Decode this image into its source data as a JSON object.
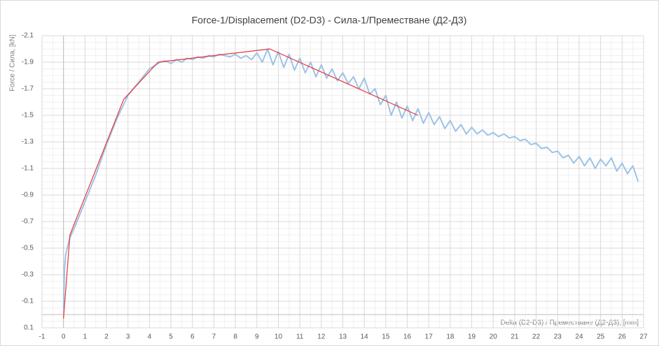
{
  "chart_data": {
    "type": "line",
    "title": "Force-1/Displacement (D2-D3) - Сила-1/Преместване (Д2-Д3)",
    "x_label": "Delta (D2-D3) / Преместване (Д2-Д3), [mm]",
    "y_label": "Force / Сила, [kN]",
    "xlim": [
      -1,
      27
    ],
    "xticks": [
      -1,
      0,
      1,
      2,
      3,
      4,
      5,
      6,
      7,
      8,
      9,
      10,
      11,
      12,
      13,
      14,
      15,
      16,
      17,
      18,
      19,
      20,
      21,
      22,
      23,
      24,
      25,
      26,
      27
    ],
    "ylim": [
      0.1,
      -2.1
    ],
    "yticks": [
      -2.1,
      -1.9,
      -1.7,
      -1.5,
      -1.3,
      -1.1,
      -0.9,
      -0.7,
      -0.5,
      -0.3,
      -0.1,
      0.1
    ],
    "grid": true,
    "series": [
      {
        "color": "#9dc3e6",
        "x": [
          0,
          0.05,
          0.1,
          0.2,
          0.3,
          0.5,
          0.8,
          1.0,
          1.5,
          2.0,
          2.5,
          3.0,
          3.5,
          4.0,
          4.5,
          4.75,
          5,
          5.25,
          5.5,
          5.75,
          6,
          6.25,
          6.5,
          6.75,
          7,
          7.25,
          7.5,
          7.75,
          8,
          8.25,
          8.5,
          8.75,
          9,
          9.25,
          9.5,
          9.75,
          10,
          10.25,
          10.5,
          10.75,
          11,
          11.25,
          11.5,
          11.75,
          12,
          12.25,
          12.5,
          12.75,
          13,
          13.25,
          13.5,
          13.75,
          14,
          14.25,
          14.5,
          14.75,
          15,
          15.25,
          15.5,
          15.75,
          16,
          16.25,
          16.5,
          16.75,
          17,
          17.25,
          17.5,
          17.75,
          18,
          18.25,
          18.5,
          18.75,
          19,
          19.25,
          19.5,
          19.75,
          20,
          20.25,
          20.5,
          20.75,
          21,
          21.25,
          21.5,
          21.75,
          22,
          22.25,
          22.5,
          22.75,
          23,
          23.25,
          23.5,
          23.75,
          24,
          24.25,
          24.5,
          24.75,
          25,
          25.25,
          25.5,
          25.75,
          26,
          26.25,
          26.5,
          26.75
        ],
        "values": [
          -0.05,
          -0.35,
          -0.45,
          -0.52,
          -0.58,
          -0.65,
          -0.77,
          -0.85,
          -1.05,
          -1.28,
          -1.48,
          -1.65,
          -1.75,
          -1.85,
          -1.9,
          -1.91,
          -1.89,
          -1.92,
          -1.9,
          -1.93,
          -1.92,
          -1.94,
          -1.93,
          -1.95,
          -1.94,
          -1.96,
          -1.95,
          -1.94,
          -1.96,
          -1.93,
          -1.95,
          -1.92,
          -1.97,
          -1.9,
          -2.0,
          -1.88,
          -1.98,
          -1.86,
          -1.96,
          -1.84,
          -1.93,
          -1.82,
          -1.9,
          -1.79,
          -1.88,
          -1.78,
          -1.85,
          -1.76,
          -1.82,
          -1.74,
          -1.79,
          -1.7,
          -1.78,
          -1.66,
          -1.7,
          -1.58,
          -1.65,
          -1.5,
          -1.6,
          -1.48,
          -1.57,
          -1.46,
          -1.55,
          -1.44,
          -1.52,
          -1.43,
          -1.49,
          -1.4,
          -1.46,
          -1.38,
          -1.43,
          -1.36,
          -1.41,
          -1.36,
          -1.39,
          -1.35,
          -1.37,
          -1.34,
          -1.36,
          -1.33,
          -1.34,
          -1.31,
          -1.32,
          -1.28,
          -1.29,
          -1.25,
          -1.26,
          -1.22,
          -1.23,
          -1.18,
          -1.2,
          -1.14,
          -1.19,
          -1.12,
          -1.18,
          -1.1,
          -1.17,
          -1.12,
          -1.18,
          -1.08,
          -1.14,
          -1.06,
          -1.12,
          -1.0
        ]
      },
      {
        "color": "#e8343a",
        "x": [
          0,
          0.3,
          2.8,
          4.4,
          9.6,
          16.5
        ],
        "values": [
          0.03,
          -0.6,
          -1.62,
          -1.9,
          -2.0,
          -1.5
        ]
      }
    ]
  }
}
